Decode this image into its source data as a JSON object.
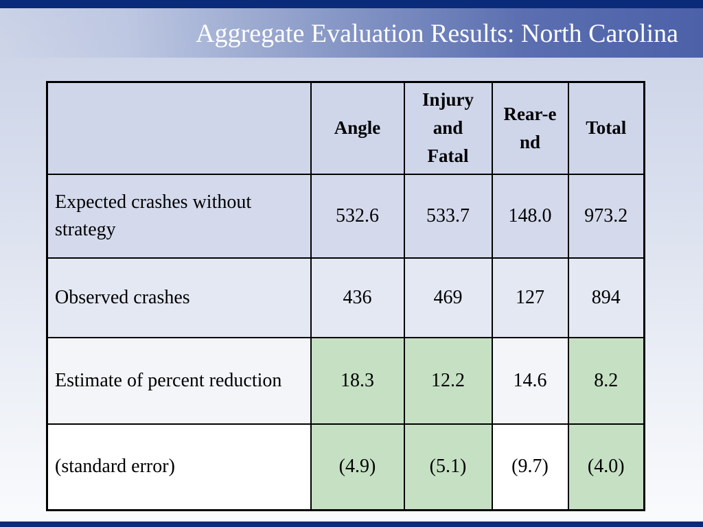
{
  "slide": {
    "title": "Aggregate Evaluation Results: North Carolina"
  },
  "table": {
    "columns": [
      "",
      "Angle",
      "Injury and Fatal",
      "Rear-end",
      "Total"
    ],
    "rows": [
      {
        "label": "Expected crashes without strategy",
        "values": [
          "532.6",
          "533.7",
          "148.0",
          "973.2"
        ]
      },
      {
        "label": "Observed crashes",
        "values": [
          "436",
          "469",
          "127",
          "894"
        ]
      },
      {
        "label": "Estimate of percent reduction",
        "values": [
          "18.3",
          "12.2",
          "14.6",
          "8.2"
        ]
      },
      {
        "label": "(standard error)",
        "values": [
          "(4.9)",
          "(5.1)",
          "(9.7)",
          "(4.0)"
        ]
      }
    ]
  },
  "colors": {
    "header_bar": "#0a2a7a",
    "highlight_green": "#c6e0c4",
    "title_text": "#ffffff"
  }
}
